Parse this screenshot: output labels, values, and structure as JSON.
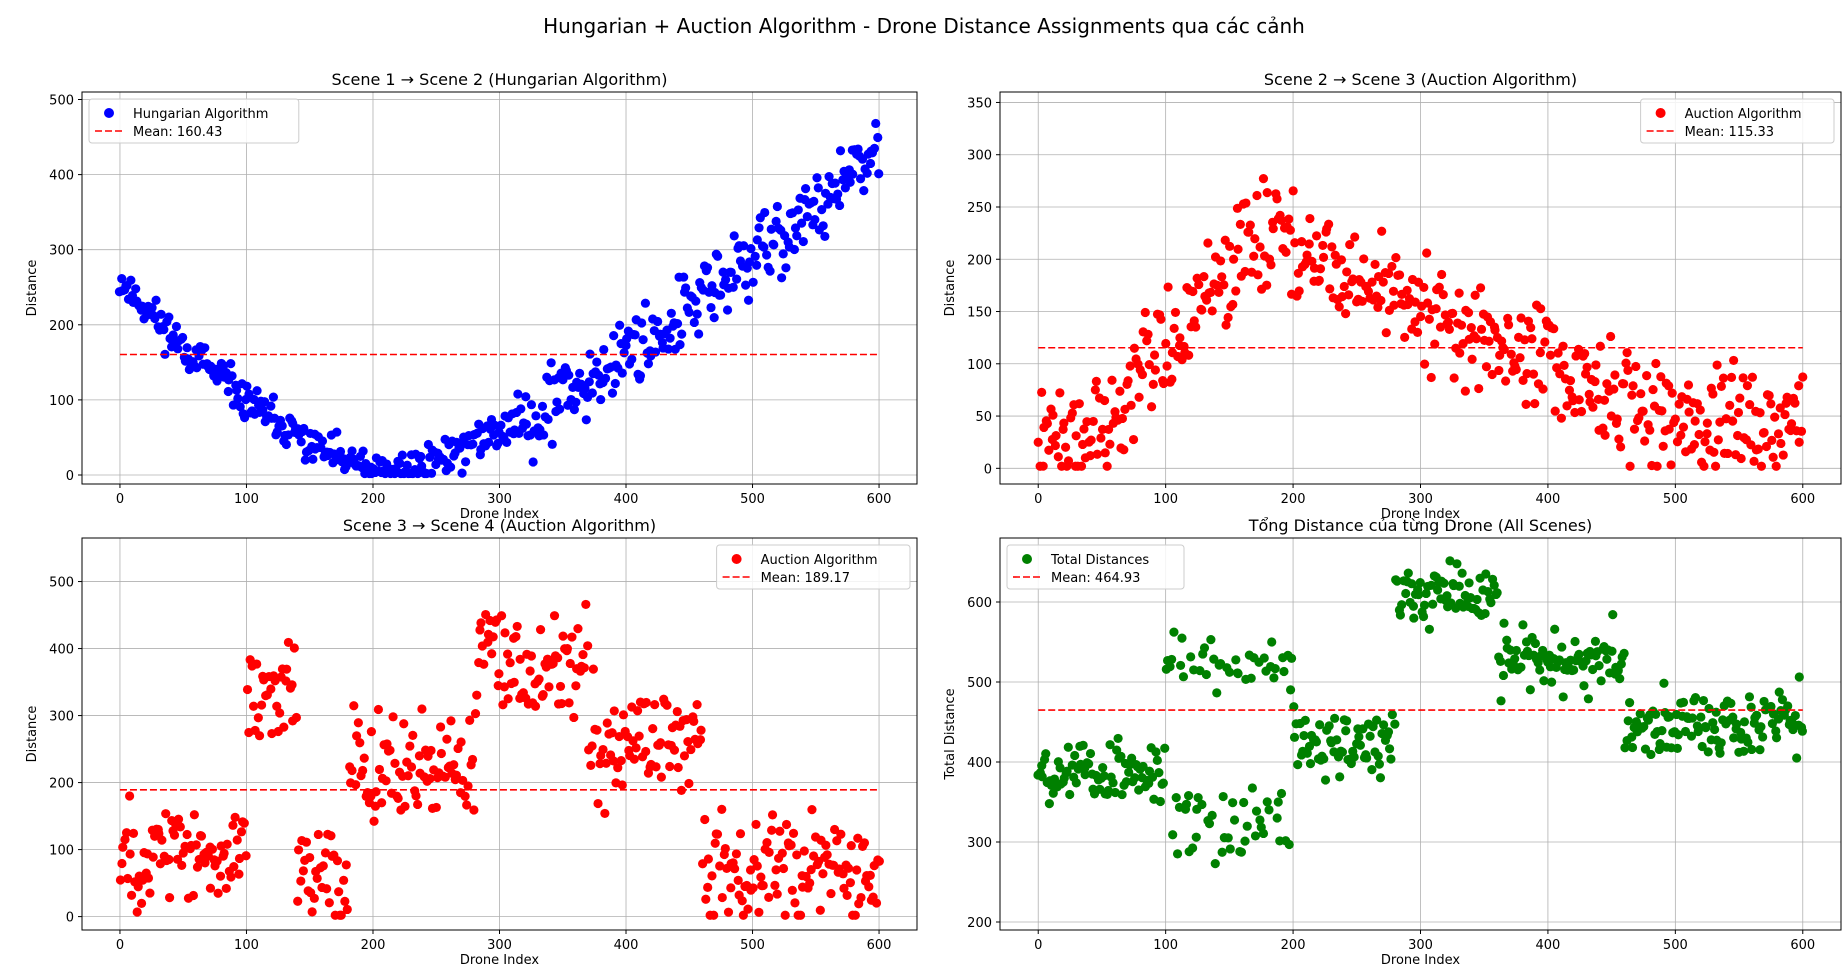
{
  "figure": {
    "title": "Hungarian + Auction Algorithm - Drone Distance Assignments qua các cảnh"
  },
  "chart_data": [
    {
      "type": "scatter",
      "title": "Scene 1 → Scene 2 (Hungarian Algorithm)",
      "xlabel": "Drone Index",
      "ylabel": "Distance",
      "xlim": [
        -30,
        630
      ],
      "ylim": [
        -12,
        510
      ],
      "xticks": [
        0,
        100,
        200,
        300,
        400,
        500,
        600
      ],
      "yticks": [
        0,
        100,
        200,
        300,
        400,
        500
      ],
      "grid": true,
      "legend_position": "top-left",
      "series": [
        {
          "name": "Hungarian Algorithm",
          "color": "#0000ff",
          "trend": "u_low",
          "points_note": "bounded estimate of ~600 points"
        }
      ],
      "mean_line": {
        "name": "Mean: 160.43",
        "value": 160.43,
        "color": "#ff0000"
      }
    },
    {
      "type": "scatter",
      "title": "Scene 2 → Scene 3 (Auction Algorithm)",
      "xlabel": "Drone Index",
      "ylabel": "Distance",
      "xlim": [
        -30,
        630
      ],
      "ylim": [
        -15,
        360
      ],
      "xticks": [
        0,
        100,
        200,
        300,
        400,
        500,
        600
      ],
      "yticks": [
        0,
        50,
        100,
        150,
        200,
        250,
        300,
        350
      ],
      "grid": true,
      "legend_position": "top-right",
      "series": [
        {
          "name": "Auction Algorithm",
          "color": "#ff0000",
          "trend": "hump"
        }
      ],
      "mean_line": {
        "name": "Mean: 115.33",
        "value": 115.33,
        "color": "#ff0000"
      }
    },
    {
      "type": "scatter",
      "title": "Scene 3 → Scene 4 (Auction Algorithm)",
      "xlabel": "Drone Index",
      "ylabel": "Distance",
      "xlim": [
        -30,
        630
      ],
      "ylim": [
        -20,
        565
      ],
      "xticks": [
        0,
        100,
        200,
        300,
        400,
        500,
        600
      ],
      "yticks": [
        0,
        100,
        200,
        300,
        400,
        500
      ],
      "grid": true,
      "legend_position": "top-right",
      "series": [
        {
          "name": "Auction Algorithm",
          "color": "#ff0000",
          "trend": "waves"
        }
      ],
      "mean_line": {
        "name": "Mean: 189.17",
        "value": 189.17,
        "color": "#ff0000"
      }
    },
    {
      "type": "scatter",
      "title": "Tổng Distance của từng Drone (All Scenes)",
      "xlabel": "Drone Index",
      "ylabel": "Total Distance",
      "xlim": [
        -30,
        630
      ],
      "ylim": [
        190,
        680
      ],
      "xticks": [
        0,
        100,
        200,
        300,
        400,
        500,
        600
      ],
      "yticks": [
        200,
        300,
        400,
        500,
        600
      ],
      "grid": true,
      "legend_position": "top-left",
      "series": [
        {
          "name": "Total Distances",
          "color": "#008000",
          "trend": "total"
        }
      ],
      "mean_line": {
        "name": "Mean: 464.93",
        "value": 464.93,
        "color": "#ff0000"
      }
    }
  ]
}
